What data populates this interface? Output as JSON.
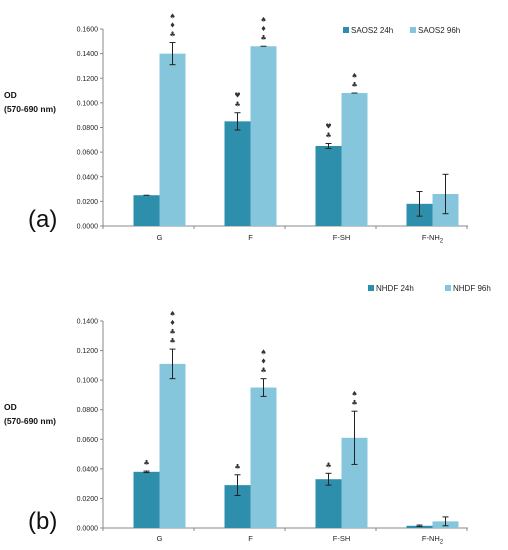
{
  "chart_data": [
    {
      "type": "bar",
      "panel_label": "(a)",
      "ylabel_line1": "OD",
      "ylabel_line2": "(570-690 nm)",
      "categories": [
        "G",
        "F",
        "F-SH",
        "F-NH2"
      ],
      "category_labels": [
        {
          "main": "G",
          "sub": ""
        },
        {
          "main": "F",
          "sub": ""
        },
        {
          "main": "F-SH",
          "sub": ""
        },
        {
          "main": "F-NH",
          "sub": "2"
        }
      ],
      "ylim": [
        0,
        0.16
      ],
      "yticks": [
        "0.0000",
        "0.0200",
        "0.0400",
        "0.0600",
        "0.0800",
        "0.1000",
        "0.1200",
        "0.1400",
        "0.1600"
      ],
      "tick_values": [
        0,
        0.02,
        0.04,
        0.06,
        0.08,
        0.1,
        0.12,
        0.14,
        0.16
      ],
      "legend_position": "top-right",
      "grid": false,
      "series": [
        {
          "name": "SAOS2 24h",
          "color": "#2e8fad",
          "values": [
            0.025,
            0.085,
            0.065,
            0.018
          ],
          "errors": [
            0,
            0.007,
            0.002,
            0.01
          ]
        },
        {
          "name": "SAOS2 96h",
          "color": "#86c6dc",
          "values": [
            0.14,
            0.146,
            0.108,
            0.026
          ],
          "errors": [
            0.009,
            0,
            0,
            0.016
          ]
        }
      ],
      "annotations": [
        {
          "category": 0,
          "series": 1,
          "symbols": [
            "♠",
            "♦",
            "♣"
          ]
        },
        {
          "category": 1,
          "series": 0,
          "symbols": [
            "♥",
            "♣"
          ]
        },
        {
          "category": 1,
          "series": 1,
          "symbols": [
            "♠",
            "♦",
            "♣"
          ]
        },
        {
          "category": 2,
          "series": 0,
          "symbols": [
            "♥",
            "♣"
          ]
        },
        {
          "category": 2,
          "series": 1,
          "symbols": [
            "♠",
            "♣"
          ]
        }
      ]
    },
    {
      "type": "bar",
      "panel_label": "(b)",
      "ylabel_line1": "OD",
      "ylabel_line2": "(570-690 nm)",
      "categories": [
        "G",
        "F",
        "F-SH",
        "F-NH2"
      ],
      "category_labels": [
        {
          "main": "G",
          "sub": ""
        },
        {
          "main": "F",
          "sub": ""
        },
        {
          "main": "F-SH",
          "sub": ""
        },
        {
          "main": "F-NH",
          "sub": "2"
        }
      ],
      "ylim": [
        0,
        0.14
      ],
      "yticks": [
        "0.0000",
        "0.0200",
        "0.0400",
        "0.0600",
        "0.0800",
        "0.1000",
        "0.1200",
        "0.1400"
      ],
      "tick_values": [
        0,
        0.02,
        0.04,
        0.06,
        0.08,
        0.1,
        0.12,
        0.14
      ],
      "legend_position": "top-right",
      "grid": false,
      "series": [
        {
          "name": "NHDF 24h",
          "color": "#2e8fad",
          "values": [
            0.038,
            0.029,
            0.033,
            0.0015
          ],
          "errors": [
            0.0005,
            0.007,
            0.004,
            0.0005
          ]
        },
        {
          "name": "NHDF 96h",
          "color": "#86c6dc",
          "values": [
            0.111,
            0.095,
            0.061,
            0.0045
          ],
          "errors": [
            0.01,
            0.006,
            0.018,
            0.003
          ]
        }
      ],
      "annotations": [
        {
          "category": 0,
          "series": 0,
          "symbols": [
            "♣"
          ]
        },
        {
          "category": 0,
          "series": 1,
          "symbols": [
            "♠",
            "♦",
            "♣",
            "♣"
          ]
        },
        {
          "category": 1,
          "series": 0,
          "symbols": [
            "♣"
          ]
        },
        {
          "category": 1,
          "series": 1,
          "symbols": [
            "♠",
            "♦",
            "♣"
          ]
        },
        {
          "category": 2,
          "series": 0,
          "symbols": [
            "♣"
          ]
        },
        {
          "category": 2,
          "series": 1,
          "symbols": [
            "♠",
            "♣"
          ]
        }
      ]
    }
  ]
}
